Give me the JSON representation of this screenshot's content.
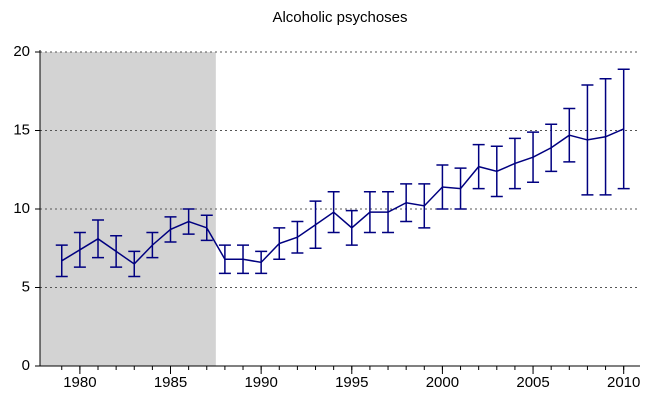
{
  "chart_data": {
    "type": "line",
    "title": "Alcoholic psychoses",
    "x": [
      1979,
      1980,
      1981,
      1982,
      1983,
      1984,
      1985,
      1986,
      1987,
      1988,
      1989,
      1990,
      1991,
      1992,
      1993,
      1994,
      1995,
      1996,
      1997,
      1998,
      1999,
      2000,
      2001,
      2002,
      2003,
      2004,
      2005,
      2006,
      2007,
      2008,
      2009,
      2010
    ],
    "series": [
      {
        "color": "#000080",
        "values": [
          6.7,
          7.4,
          8.1,
          7.3,
          6.5,
          7.7,
          8.7,
          9.2,
          8.8,
          6.8,
          6.8,
          6.6,
          7.8,
          8.2,
          9.0,
          9.8,
          8.8,
          9.8,
          9.8,
          10.4,
          10.2,
          11.4,
          11.3,
          12.7,
          12.4,
          12.9,
          13.3,
          13.9,
          14.7,
          14.4,
          14.6,
          15.1
        ],
        "errors": [
          1.0,
          1.1,
          1.2,
          1.0,
          0.8,
          0.8,
          0.8,
          0.8,
          0.8,
          0.9,
          0.9,
          0.7,
          1.0,
          1.0,
          1.5,
          1.3,
          1.1,
          1.3,
          1.3,
          1.2,
          1.4,
          1.4,
          1.3,
          1.4,
          1.6,
          1.6,
          1.6,
          1.5,
          1.7,
          3.5,
          3.7,
          3.8
        ]
      }
    ],
    "shaded_range": [
      1977.8,
      1987.5
    ],
    "shaded_color": "#d3d3d3",
    "xlim": [
      1977.8,
      2010.9
    ],
    "xticks": [
      1980,
      1985,
      1990,
      1995,
      2000,
      2005,
      2010
    ],
    "ylim": [
      0,
      20
    ],
    "yticks": [
      0,
      5,
      10,
      15,
      20
    ],
    "grid": true
  }
}
